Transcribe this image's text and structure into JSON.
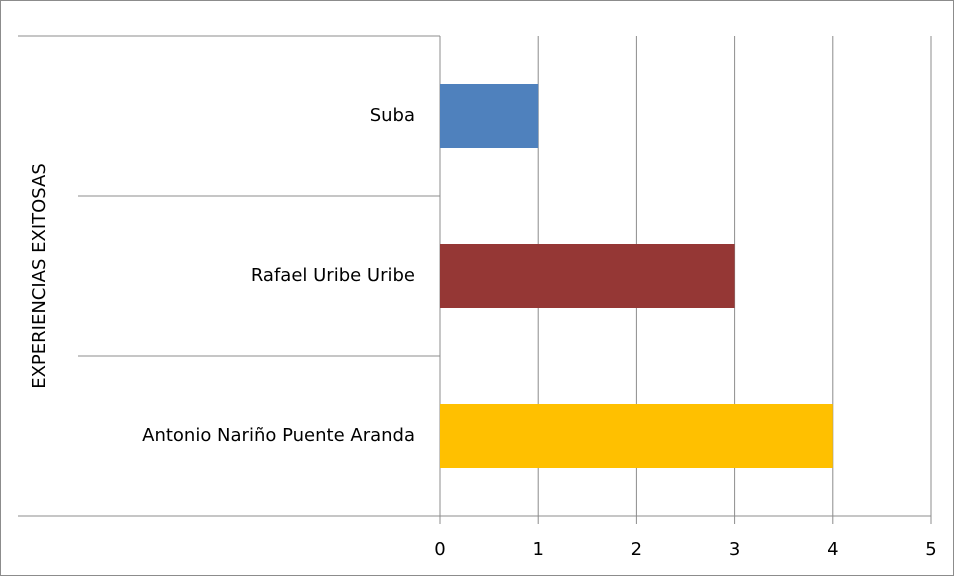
{
  "chart_data": {
    "type": "bar",
    "orientation": "horizontal",
    "y_label": "EXPERIENCIAS EXITOSAS",
    "categories": [
      "Suba",
      "Rafael Uribe Uribe",
      "Antonio Nariño Puente Aranda"
    ],
    "values": [
      1,
      3,
      4
    ],
    "colors": [
      "#4f81bd",
      "#953735",
      "#ffc000"
    ],
    "xlim": [
      0,
      5
    ],
    "xticks": [
      0,
      1,
      2,
      3,
      4,
      5
    ],
    "grid": true
  }
}
